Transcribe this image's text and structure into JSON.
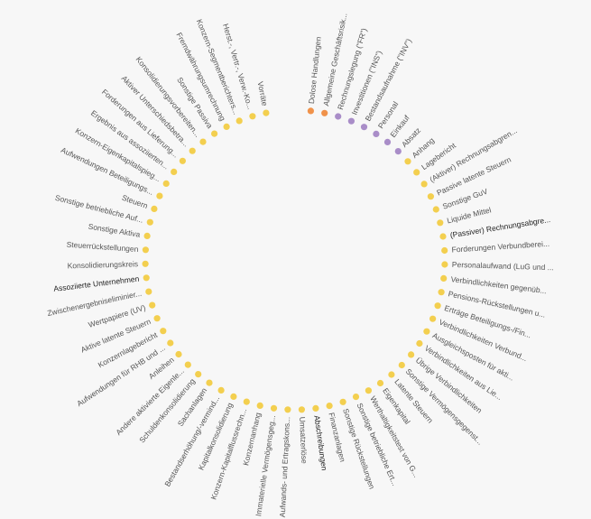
{
  "colors": {
    "yellow": "#f3cf4f",
    "orange": "#f0924a",
    "purple": "#a98dc8",
    "text": "#555555",
    "text_emphasis": "#222222"
  },
  "nodes": [
    {
      "label": "Dolose Handlungen",
      "group": "orange"
    },
    {
      "label": "Allgemeine Geschäftsrisik...",
      "group": "orange"
    },
    {
      "label": "Rechnungslegung (\"FR\")",
      "group": "purple"
    },
    {
      "label": "Investitionen (\"INS\")",
      "group": "purple"
    },
    {
      "label": "Bestandsaufnahme (\"INV\")",
      "group": "purple"
    },
    {
      "label": "Personal",
      "group": "purple"
    },
    {
      "label": "Einkauf",
      "group": "purple"
    },
    {
      "label": "Absatz",
      "group": "purple"
    },
    {
      "label": "Anhang",
      "group": "yellow"
    },
    {
      "label": "Lagebericht",
      "group": "yellow"
    },
    {
      "label": "(Aktiver) Rechnungsabgren...",
      "group": "yellow"
    },
    {
      "label": "Passive latente Steuern",
      "group": "yellow"
    },
    {
      "label": "Sonstige GuV",
      "group": "yellow"
    },
    {
      "label": "Liquide Mittel",
      "group": "yellow"
    },
    {
      "label": "(Passiver) Rechnungsabgre...",
      "group": "yellow",
      "emphasis": true
    },
    {
      "label": "Forderungen Verbundberei...",
      "group": "yellow"
    },
    {
      "label": "Personalaufwand (LuG und ...",
      "group": "yellow"
    },
    {
      "label": "Verbindlichkeiten gegenüb...",
      "group": "yellow"
    },
    {
      "label": "Pensions-Rückstellungen u...",
      "group": "yellow"
    },
    {
      "label": "Erträge Beteiligungs-/Fin...",
      "group": "yellow"
    },
    {
      "label": "Verbindlichkeiten Verbund...",
      "group": "yellow"
    },
    {
      "label": "Ausgleichsposten für akti...",
      "group": "yellow"
    },
    {
      "label": "Verbindlichkeiten aus Lie...",
      "group": "yellow"
    },
    {
      "label": "Übrige Verbindlichkeiten",
      "group": "yellow"
    },
    {
      "label": "Sonstige Vermögensgegenst...",
      "group": "yellow"
    },
    {
      "label": "Latente Steuern",
      "group": "yellow"
    },
    {
      "label": "Eigenkapital",
      "group": "yellow"
    },
    {
      "label": "Werthaltigkeitstest von G...",
      "group": "yellow"
    },
    {
      "label": "Sonstige betriebliche Ert...",
      "group": "yellow"
    },
    {
      "label": "Sonstige Rückstellungen",
      "group": "yellow"
    },
    {
      "label": "Finanzanlagen",
      "group": "yellow"
    },
    {
      "label": "Abschreibungen",
      "group": "yellow",
      "emphasis": true
    },
    {
      "label": "Umsatzerlöse",
      "group": "yellow"
    },
    {
      "label": "Aufwands- und Ertragskons...",
      "group": "yellow"
    },
    {
      "label": "Immaterielle Vermögensgeg...",
      "group": "yellow"
    },
    {
      "label": "Konzernanhang",
      "group": "yellow"
    },
    {
      "label": "Konzern-Kapitalflussrechn...",
      "group": "yellow"
    },
    {
      "label": "Kapitalkonsolidierung",
      "group": "yellow"
    },
    {
      "label": "Bestandserhöhung/-vermind...",
      "group": "yellow"
    },
    {
      "label": "Sachanlagen",
      "group": "yellow"
    },
    {
      "label": "Schuldenkonsolidierung",
      "group": "yellow"
    },
    {
      "label": "Andere aktivierte Eigenle...",
      "group": "yellow"
    },
    {
      "label": "Anleihen",
      "group": "yellow"
    },
    {
      "label": "Aufwendungen für RHB und ...",
      "group": "yellow"
    },
    {
      "label": "Konzernlagebericht",
      "group": "yellow"
    },
    {
      "label": "Aktive latente Steuern",
      "group": "yellow"
    },
    {
      "label": "Wertpapiere (UV)",
      "group": "yellow"
    },
    {
      "label": "Zwischenergebniseliminier...",
      "group": "yellow"
    },
    {
      "label": "Assoziierte Unternehmen",
      "group": "yellow",
      "emphasis": true
    },
    {
      "label": "Konsolidierungskreis",
      "group": "yellow"
    },
    {
      "label": "Steuerrückstellungen",
      "group": "yellow"
    },
    {
      "label": "Sonstige Aktiva",
      "group": "yellow"
    },
    {
      "label": "Sonstige betriebliche Auf...",
      "group": "yellow"
    },
    {
      "label": "Steuern",
      "group": "yellow"
    },
    {
      "label": "Aufwendungen Beteiligungs...",
      "group": "yellow"
    },
    {
      "label": "Konzern-Eigenkapitalspieg...",
      "group": "yellow"
    },
    {
      "label": "Ergebnis aus assoziierten...",
      "group": "yellow"
    },
    {
      "label": "Forderungen aus Lieferung...",
      "group": "yellow"
    },
    {
      "label": "Aktiver Unterschiedsbetra...",
      "group": "yellow"
    },
    {
      "label": "Konsolidierungsvorbereiten...",
      "group": "yellow"
    },
    {
      "label": "Sonstige Passiva",
      "group": "yellow"
    },
    {
      "label": "Fremdwährungsumrechnung",
      "group": "yellow"
    },
    {
      "label": "Konzern-Segmentberichters...",
      "group": "yellow"
    },
    {
      "label": "Herst.-, Vertr.-, Verw.-Ko...",
      "group": "yellow"
    },
    {
      "label": "Vorräte",
      "group": "yellow"
    }
  ]
}
